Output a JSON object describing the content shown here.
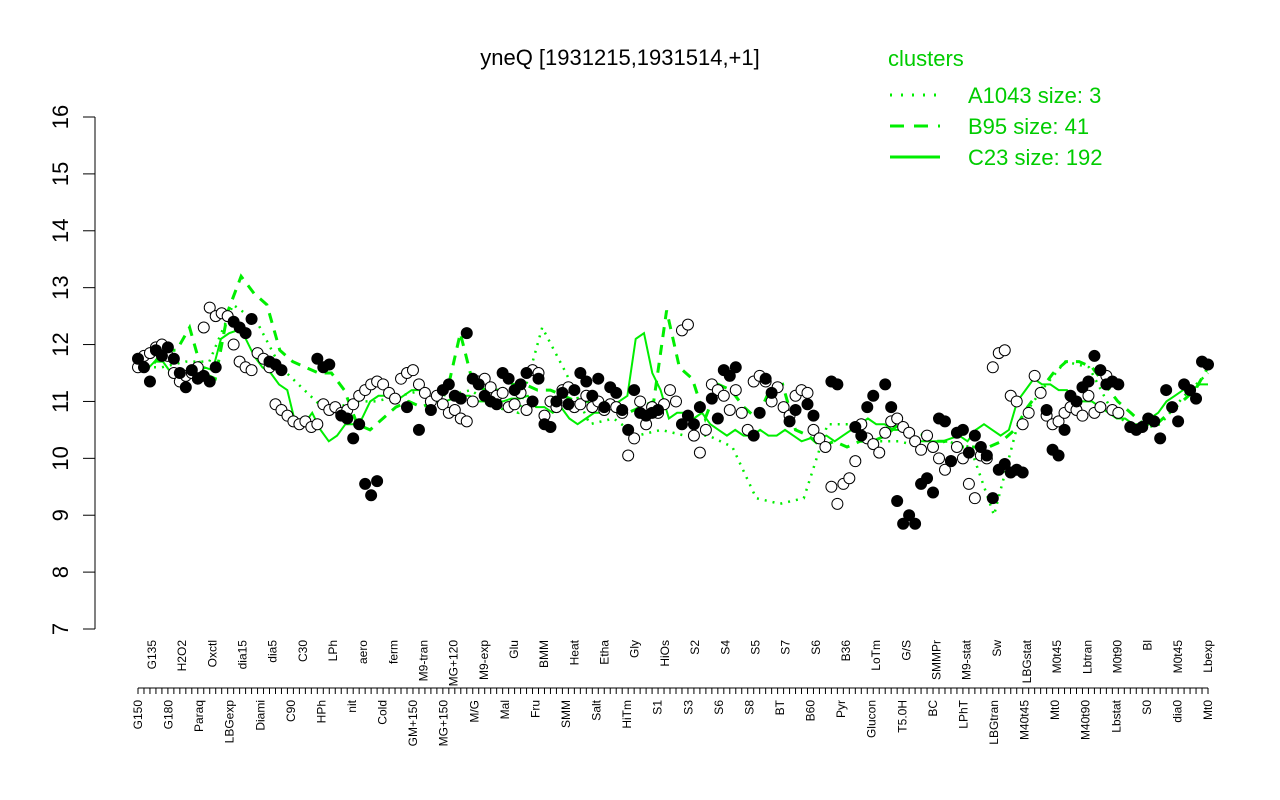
{
  "chart_data": {
    "type": "line",
    "title": "yneQ [1931215,1931514,+1]",
    "xlabel": "",
    "ylabel": "",
    "ylim": [
      7,
      16
    ],
    "yticks": [
      7,
      8,
      9,
      10,
      11,
      12,
      13,
      14,
      15,
      16
    ],
    "grid": false,
    "legend": {
      "title": "clusters",
      "placement": "top-right",
      "entries": [
        {
          "label": "A1043 size: 3",
          "style": "dotted"
        },
        {
          "label": "B95 size: 41",
          "style": "dashed"
        },
        {
          "label": "C23 size: 192",
          "style": "solid"
        }
      ]
    },
    "x_tick_labels": [
      "G150",
      "G180",
      "Paraq",
      "LBGexp",
      "Diami",
      "C90",
      "HPh",
      "nit",
      "Cold",
      "GM+150",
      "MG+150",
      "M/G",
      "Mal",
      "Fru",
      "SMM",
      "Salt",
      "HiTm",
      "S1",
      "S3",
      "S6",
      "S8",
      "BT",
      "B60",
      "Pyr",
      "Glucon",
      "T5.0H",
      "BC",
      "LPhT",
      "LBGtran",
      "M40t45",
      "Mt0",
      "M40t90",
      "Lbstat",
      "S0",
      "dia0",
      "Mt0",
      "G135",
      "H2O2",
      "Oxctl",
      "dia15",
      "dia5",
      "C30",
      "LPh",
      "aero",
      "ferm",
      "M9-tran",
      "MG+120",
      "M9-exp",
      "Glu",
      "BMM",
      "Heat",
      "Etha",
      "Gly",
      "HiOs",
      "S2",
      "S4",
      "S5",
      "S7",
      "S6",
      "B36",
      "LoTm",
      "G/S",
      "SMMPr",
      "M9-stat",
      "Sw",
      "LBGstat",
      "M0t45",
      "Lbtran",
      "M0t90",
      "Bl",
      "M0t45",
      "Lbexp"
    ],
    "series_lines": {
      "C23": [
        11.6,
        11.55,
        11.7,
        11.7,
        11.5,
        11.3,
        11.55,
        11.35,
        11.6,
        11.55,
        12.1,
        12.2,
        12.25,
        12.1,
        11.8,
        11.6,
        11.5,
        11.3,
        11.2,
        10.6,
        10.6,
        10.8,
        10.5,
        10.3,
        10.4,
        10.6,
        10.6,
        10.7,
        11.0,
        11.1,
        11.1,
        11.0,
        11.1,
        11.2,
        11.2,
        11.1,
        11.0,
        11.0,
        11.05,
        11.1,
        11.1,
        11.0,
        11.0,
        11.0,
        11.0,
        11.05,
        11.05,
        11.1,
        10.9,
        10.9,
        10.8,
        10.9,
        10.7,
        10.6,
        10.7,
        10.8,
        10.8,
        10.9,
        11.0,
        11.1,
        12.1,
        12.2,
        11.5,
        11.2,
        10.7,
        10.8,
        10.8,
        10.7,
        10.8,
        10.6,
        10.5,
        10.4,
        10.5,
        10.4,
        10.4,
        10.5,
        10.4,
        10.4,
        10.5,
        10.4,
        10.3,
        10.35,
        10.35,
        10.4,
        10.3,
        10.4,
        10.5,
        10.6,
        10.7,
        10.6,
        10.6,
        10.5,
        10.5,
        10.4,
        10.3,
        10.3,
        10.3,
        10.3,
        10.35,
        10.4,
        10.3,
        10.5,
        10.6,
        10.5,
        10.4,
        10.5,
        11.0,
        11.2,
        11.4,
        11.3,
        11.3,
        11.2,
        11.2,
        11.0,
        11.0,
        11.0,
        10.9,
        10.8,
        10.7,
        10.7,
        10.6,
        10.6,
        10.7,
        10.8,
        11.0,
        11.1,
        11.2,
        11.2,
        11.3,
        11.3
      ],
      "B95": [
        11.6,
        11.6,
        11.9,
        11.9,
        12.3,
        11.5,
        11.4,
        12.6,
        13.2,
        12.9,
        12.7,
        11.9,
        11.7,
        11.6,
        11.5,
        11.5,
        11.2,
        10.6,
        10.5,
        10.7,
        10.9,
        11.0,
        10.9,
        11.0,
        11.2,
        12.2,
        11.3,
        11.2,
        11.2,
        11.3,
        11.3,
        11.2,
        11.2,
        11.1,
        11.0,
        11.0,
        11.0,
        10.9,
        10.8,
        10.9,
        11.0,
        12.6,
        11.6,
        11.4,
        10.7,
        11.3,
        11.2,
        10.9,
        10.7,
        11.2,
        11.3,
        10.5,
        10.4,
        10.2,
        10.3,
        10.2,
        10.3,
        10.3,
        10.4,
        10.6,
        10.5,
        10.4,
        10.3,
        10.3,
        10.2,
        10.2,
        10.2,
        10.3,
        10.5,
        10.9,
        11.2,
        11.5,
        11.7,
        11.7,
        11.6,
        11.3,
        11.0,
        10.8,
        10.6,
        10.6,
        10.8,
        11.0,
        11.2,
        11.6
      ],
      "A1043": [
        11.6,
        11.6,
        11.7,
        11.7,
        12.7,
        12.4,
        11.6,
        11.2,
        10.8,
        11.0,
        11.0,
        11.1,
        11.2,
        11.1,
        11.2,
        10.9,
        10.8,
        12.3,
        11.5,
        10.6,
        10.7,
        10.4,
        10.5,
        10.4,
        10.4,
        10.2,
        9.3,
        9.2,
        9.3,
        10.6,
        10.6,
        10.3,
        10.3,
        10.2,
        10.3,
        10.2,
        9.0,
        10.6,
        11.2,
        11.7,
        11.6,
        10.8,
        10.5,
        10.6,
        11.1,
        11.5
      ]
    },
    "points_filled": [
      [
        0,
        11.75
      ],
      [
        1,
        11.6
      ],
      [
        2,
        11.35
      ],
      [
        3,
        11.9
      ],
      [
        4,
        11.8
      ],
      [
        5,
        11.95
      ],
      [
        6,
        11.75
      ],
      [
        7,
        11.5
      ],
      [
        8,
        11.25
      ],
      [
        9,
        11.55
      ],
      [
        10,
        11.4
      ],
      [
        11,
        11.45
      ],
      [
        12,
        11.35
      ],
      [
        13,
        11.6
      ],
      [
        16,
        12.4
      ],
      [
        17,
        12.3
      ],
      [
        18,
        12.2
      ],
      [
        19,
        12.45
      ],
      [
        22,
        11.7
      ],
      [
        23,
        11.65
      ],
      [
        24,
        11.55
      ],
      [
        30,
        11.75
      ],
      [
        31,
        11.6
      ],
      [
        32,
        11.65
      ],
      [
        34,
        10.75
      ],
      [
        35,
        10.7
      ],
      [
        36,
        10.35
      ],
      [
        37,
        10.6
      ],
      [
        38,
        9.55
      ],
      [
        39,
        9.35
      ],
      [
        40,
        9.6
      ],
      [
        45,
        10.9
      ],
      [
        47,
        10.5
      ],
      [
        49,
        10.85
      ],
      [
        51,
        11.2
      ],
      [
        52,
        11.3
      ],
      [
        53,
        11.1
      ],
      [
        54,
        11.05
      ],
      [
        55,
        12.2
      ],
      [
        56,
        11.4
      ],
      [
        57,
        11.3
      ],
      [
        58,
        11.1
      ],
      [
        59,
        11.0
      ],
      [
        60,
        10.95
      ],
      [
        61,
        11.5
      ],
      [
        62,
        11.4
      ],
      [
        63,
        11.2
      ],
      [
        64,
        11.3
      ],
      [
        65,
        11.5
      ],
      [
        66,
        11.0
      ],
      [
        67,
        11.4
      ],
      [
        68,
        10.6
      ],
      [
        69,
        10.55
      ],
      [
        70,
        11.0
      ],
      [
        71,
        11.15
      ],
      [
        72,
        10.95
      ],
      [
        73,
        11.2
      ],
      [
        74,
        11.5
      ],
      [
        75,
        11.35
      ],
      [
        76,
        11.1
      ],
      [
        77,
        11.4
      ],
      [
        78,
        10.9
      ],
      [
        79,
        11.25
      ],
      [
        80,
        11.15
      ],
      [
        81,
        10.85
      ],
      [
        82,
        10.5
      ],
      [
        83,
        11.2
      ],
      [
        84,
        10.8
      ],
      [
        85,
        10.75
      ],
      [
        86,
        10.8
      ],
      [
        87,
        10.85
      ],
      [
        91,
        10.6
      ],
      [
        92,
        10.75
      ],
      [
        93,
        10.6
      ],
      [
        94,
        10.9
      ],
      [
        96,
        11.05
      ],
      [
        97,
        10.7
      ],
      [
        98,
        11.55
      ],
      [
        99,
        11.45
      ],
      [
        100,
        11.6
      ],
      [
        103,
        10.4
      ],
      [
        104,
        10.8
      ],
      [
        105,
        11.4
      ],
      [
        106,
        11.15
      ],
      [
        109,
        10.65
      ],
      [
        110,
        10.85
      ],
      [
        112,
        10.95
      ],
      [
        113,
        10.75
      ],
      [
        116,
        11.35
      ],
      [
        117,
        11.3
      ],
      [
        120,
        10.55
      ],
      [
        121,
        10.4
      ],
      [
        122,
        10.9
      ],
      [
        123,
        11.1
      ],
      [
        125,
        11.3
      ],
      [
        126,
        10.9
      ],
      [
        127,
        9.25
      ],
      [
        128,
        8.85
      ],
      [
        129,
        9.0
      ],
      [
        130,
        8.85
      ],
      [
        131,
        9.55
      ],
      [
        132,
        9.65
      ],
      [
        133,
        9.4
      ],
      [
        134,
        10.7
      ],
      [
        135,
        10.65
      ],
      [
        136,
        9.95
      ],
      [
        137,
        10.45
      ],
      [
        138,
        10.5
      ],
      [
        139,
        10.1
      ],
      [
        140,
        10.4
      ],
      [
        141,
        10.2
      ],
      [
        142,
        10.05
      ],
      [
        143,
        9.3
      ],
      [
        144,
        9.8
      ],
      [
        145,
        9.9
      ],
      [
        146,
        9.75
      ],
      [
        147,
        9.8
      ],
      [
        148,
        9.75
      ],
      [
        152,
        10.85
      ],
      [
        153,
        10.15
      ],
      [
        154,
        10.05
      ],
      [
        155,
        10.5
      ],
      [
        156,
        11.1
      ],
      [
        157,
        11.0
      ],
      [
        158,
        11.25
      ],
      [
        159,
        11.35
      ],
      [
        160,
        11.8
      ],
      [
        161,
        11.55
      ],
      [
        162,
        11.3
      ],
      [
        163,
        11.35
      ],
      [
        164,
        11.3
      ],
      [
        166,
        10.55
      ],
      [
        167,
        10.5
      ],
      [
        168,
        10.55
      ],
      [
        169,
        10.7
      ],
      [
        170,
        10.65
      ],
      [
        171,
        10.35
      ],
      [
        172,
        11.2
      ],
      [
        173,
        10.9
      ],
      [
        174,
        10.65
      ],
      [
        175,
        11.3
      ],
      [
        176,
        11.2
      ],
      [
        177,
        11.05
      ],
      [
        178,
        11.7
      ],
      [
        179,
        11.65
      ]
    ],
    "points_open": [
      [
        0,
        11.6
      ],
      [
        1,
        11.8
      ],
      [
        2,
        11.85
      ],
      [
        3,
        11.95
      ],
      [
        4,
        12.0
      ],
      [
        5,
        11.8
      ],
      [
        6,
        11.5
      ],
      [
        7,
        11.35
      ],
      [
        8,
        11.45
      ],
      [
        9,
        11.5
      ],
      [
        10,
        11.6
      ],
      [
        11,
        12.3
      ],
      [
        12,
        12.65
      ],
      [
        13,
        12.5
      ],
      [
        14,
        12.55
      ],
      [
        15,
        12.5
      ],
      [
        16,
        12.0
      ],
      [
        17,
        11.7
      ],
      [
        18,
        11.6
      ],
      [
        19,
        11.55
      ],
      [
        20,
        11.85
      ],
      [
        21,
        11.75
      ],
      [
        22,
        11.6
      ],
      [
        23,
        10.95
      ],
      [
        24,
        10.85
      ],
      [
        25,
        10.75
      ],
      [
        26,
        10.65
      ],
      [
        27,
        10.6
      ],
      [
        28,
        10.65
      ],
      [
        29,
        10.55
      ],
      [
        30,
        10.6
      ],
      [
        31,
        10.95
      ],
      [
        32,
        10.85
      ],
      [
        33,
        10.9
      ],
      [
        34,
        10.8
      ],
      [
        35,
        10.85
      ],
      [
        36,
        10.95
      ],
      [
        37,
        11.1
      ],
      [
        38,
        11.2
      ],
      [
        39,
        11.3
      ],
      [
        40,
        11.35
      ],
      [
        41,
        11.3
      ],
      [
        42,
        11.15
      ],
      [
        43,
        11.05
      ],
      [
        44,
        11.4
      ],
      [
        45,
        11.5
      ],
      [
        46,
        11.55
      ],
      [
        47,
        11.3
      ],
      [
        48,
        11.15
      ],
      [
        49,
        11.0
      ],
      [
        50,
        11.1
      ],
      [
        51,
        10.95
      ],
      [
        52,
        10.8
      ],
      [
        53,
        10.85
      ],
      [
        54,
        10.7
      ],
      [
        55,
        10.65
      ],
      [
        56,
        11.0
      ],
      [
        57,
        11.35
      ],
      [
        58,
        11.4
      ],
      [
        59,
        11.25
      ],
      [
        60,
        11.1
      ],
      [
        61,
        11.15
      ],
      [
        62,
        10.9
      ],
      [
        63,
        10.95
      ],
      [
        64,
        11.15
      ],
      [
        65,
        10.85
      ],
      [
        66,
        11.55
      ],
      [
        67,
        11.5
      ],
      [
        68,
        10.75
      ],
      [
        69,
        11.0
      ],
      [
        70,
        10.9
      ],
      [
        71,
        11.2
      ],
      [
        72,
        11.25
      ],
      [
        73,
        10.9
      ],
      [
        74,
        10.95
      ],
      [
        75,
        11.1
      ],
      [
        76,
        10.9
      ],
      [
        77,
        11.0
      ],
      [
        78,
        10.85
      ],
      [
        79,
        10.95
      ],
      [
        80,
        10.9
      ],
      [
        81,
        10.8
      ],
      [
        82,
        10.05
      ],
      [
        83,
        10.35
      ],
      [
        84,
        11.0
      ],
      [
        85,
        10.6
      ],
      [
        86,
        10.9
      ],
      [
        87,
        10.8
      ],
      [
        88,
        10.95
      ],
      [
        89,
        11.2
      ],
      [
        90,
        11.0
      ],
      [
        91,
        12.25
      ],
      [
        92,
        12.35
      ],
      [
        93,
        10.4
      ],
      [
        94,
        10.1
      ],
      [
        95,
        10.5
      ],
      [
        96,
        11.3
      ],
      [
        97,
        11.2
      ],
      [
        98,
        11.1
      ],
      [
        99,
        10.85
      ],
      [
        100,
        11.2
      ],
      [
        101,
        10.8
      ],
      [
        102,
        10.5
      ],
      [
        103,
        11.35
      ],
      [
        104,
        11.45
      ],
      [
        105,
        11.35
      ],
      [
        106,
        11.0
      ],
      [
        107,
        11.25
      ],
      [
        108,
        10.9
      ],
      [
        109,
        10.75
      ],
      [
        110,
        11.1
      ],
      [
        111,
        11.2
      ],
      [
        112,
        11.15
      ],
      [
        113,
        10.5
      ],
      [
        114,
        10.35
      ],
      [
        115,
        10.2
      ],
      [
        116,
        9.5
      ],
      [
        117,
        9.2
      ],
      [
        118,
        9.55
      ],
      [
        119,
        9.65
      ],
      [
        120,
        9.95
      ],
      [
        121,
        10.6
      ],
      [
        122,
        10.35
      ],
      [
        123,
        10.25
      ],
      [
        124,
        10.1
      ],
      [
        125,
        10.45
      ],
      [
        126,
        10.65
      ],
      [
        127,
        10.7
      ],
      [
        128,
        10.55
      ],
      [
        129,
        10.45
      ],
      [
        130,
        10.3
      ],
      [
        131,
        10.15
      ],
      [
        132,
        10.4
      ],
      [
        133,
        10.2
      ],
      [
        134,
        10.0
      ],
      [
        135,
        9.8
      ],
      [
        136,
        9.95
      ],
      [
        137,
        10.2
      ],
      [
        138,
        10.0
      ],
      [
        139,
        9.55
      ],
      [
        140,
        9.3
      ],
      [
        141,
        10.05
      ],
      [
        142,
        10.0
      ],
      [
        143,
        11.6
      ],
      [
        144,
        11.85
      ],
      [
        145,
        11.9
      ],
      [
        146,
        11.1
      ],
      [
        147,
        11.0
      ],
      [
        148,
        10.6
      ],
      [
        149,
        10.8
      ],
      [
        150,
        11.45
      ],
      [
        151,
        11.15
      ],
      [
        152,
        10.75
      ],
      [
        153,
        10.6
      ],
      [
        154,
        10.65
      ],
      [
        155,
        10.8
      ],
      [
        156,
        10.9
      ],
      [
        157,
        10.85
      ],
      [
        158,
        10.75
      ],
      [
        159,
        11.1
      ],
      [
        160,
        10.8
      ],
      [
        161,
        10.9
      ],
      [
        162,
        11.45
      ],
      [
        163,
        10.85
      ],
      [
        164,
        10.8
      ]
    ],
    "point_count": 180
  },
  "colors": {
    "line": "#00ee00",
    "axis": "#000000",
    "point_fill": "#000000",
    "point_open": "#ffffff"
  }
}
